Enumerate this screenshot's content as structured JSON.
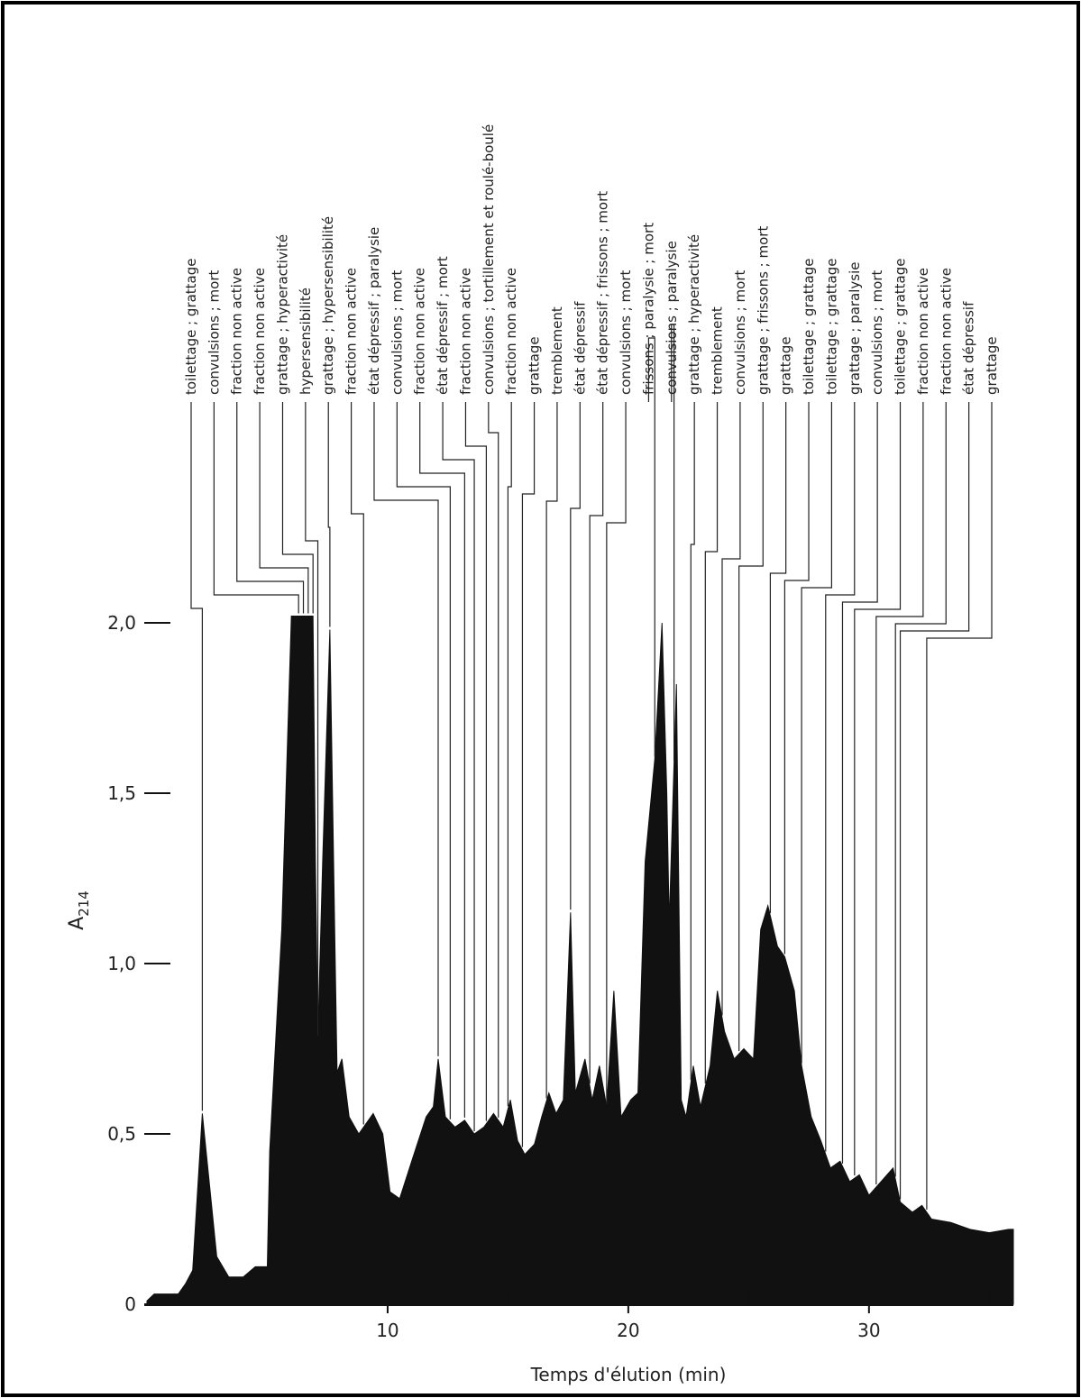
{
  "chart_data": {
    "type": "area",
    "color": "#111111",
    "x_label": "Temps d'élution (min)",
    "y_label": "A",
    "y_label_sub": "214",
    "xlim": [
      0,
      36
    ],
    "ylim": [
      0,
      2
    ],
    "xticks": [
      10,
      20,
      30
    ],
    "xminorticks": [
      5,
      15,
      25,
      35
    ],
    "yticks": [
      0,
      {
        "value": 0.5,
        "label": "0,5"
      },
      {
        "value": 1,
        "label": "1,0"
      },
      {
        "value": 1.5,
        "label": "1,5"
      },
      {
        "value": 2,
        "label": "2,0"
      }
    ],
    "x": [
      0,
      0.3,
      1.3,
      1.6,
      1.9,
      2.3,
      2.6,
      2.9,
      3.4,
      4.0,
      4.5,
      5.0,
      5.1,
      5.6,
      6.0,
      6.9,
      7.0,
      7.1,
      7.3,
      7.6,
      7.8,
      7.9,
      8.1,
      8.4,
      8.8,
      9.4,
      9.8,
      10.1,
      10.5,
      11.0,
      11.6,
      11.9,
      12.1,
      12.4,
      12.8,
      13.2,
      13.6,
      14.0,
      14.4,
      14.8,
      15.1,
      15.4,
      15.7,
      16.1,
      16.4,
      16.7,
      17.0,
      17.3,
      17.6,
      17.8,
      18.2,
      18.5,
      18.8,
      19.1,
      19.4,
      19.7,
      20.1,
      20.4,
      20.7,
      21.1,
      21.4,
      21.6,
      21.7,
      22.0,
      22.2,
      22.4,
      22.7,
      23.0,
      23.4,
      23.7,
      24.0,
      24.4,
      24.8,
      25.2,
      25.5,
      25.8,
      26.2,
      26.5,
      26.9,
      27.2,
      27.6,
      28.0,
      28.4,
      28.8,
      29.2,
      29.6,
      30.0,
      30.5,
      31.0,
      31.3,
      31.8,
      32.2,
      32.6,
      33.4,
      34.2,
      35.0,
      35.8,
      36
    ],
    "values": [
      0.01,
      0.03,
      0.03,
      0.06,
      0.1,
      0.56,
      0.35,
      0.14,
      0.08,
      0.08,
      0.11,
      0.11,
      0.45,
      1.1,
      2.02,
      2.02,
      1.3,
      0.78,
      1.3,
      1.98,
      1.1,
      0.68,
      0.72,
      0.55,
      0.5,
      0.56,
      0.5,
      0.33,
      0.31,
      0.42,
      0.55,
      0.58,
      0.72,
      0.55,
      0.52,
      0.54,
      0.5,
      0.52,
      0.56,
      0.52,
      0.6,
      0.48,
      0.44,
      0.47,
      0.55,
      0.62,
      0.56,
      0.6,
      1.15,
      0.62,
      0.72,
      0.6,
      0.7,
      0.58,
      0.92,
      0.55,
      0.6,
      0.62,
      1.3,
      1.6,
      2.0,
      1.5,
      1.12,
      1.82,
      0.6,
      0.55,
      0.7,
      0.58,
      0.7,
      0.92,
      0.8,
      0.72,
      0.75,
      0.72,
      1.1,
      1.17,
      1.05,
      1.02,
      0.92,
      0.7,
      0.55,
      0.48,
      0.4,
      0.42,
      0.36,
      0.38,
      0.32,
      0.36,
      0.4,
      0.3,
      0.27,
      0.29,
      0.25,
      0.24,
      0.22,
      0.21,
      0.22,
      0.22
    ],
    "annotations": [
      {
        "text": "toilettage ; grattage",
        "x": 2.3
      },
      {
        "text": "convulsions ; mort",
        "x": 6.3
      },
      {
        "text": "fraction non active",
        "x": 6.5
      },
      {
        "text": "fraction non active",
        "x": 6.7
      },
      {
        "text": "grattage ; hyperactivité",
        "x": 6.9
      },
      {
        "text": "hypersensibilité",
        "x": 7.1
      },
      {
        "text": "grattage ; hypersensibilité",
        "x": 7.6
      },
      {
        "text": "fraction non active",
        "x": 9.0
      },
      {
        "text": "état dépressif ; paralysie",
        "x": 12.1
      },
      {
        "text": "convulsions ; mort",
        "x": 12.6
      },
      {
        "text": "fraction non active",
        "x": 13.2
      },
      {
        "text": "état dépressif ; mort",
        "x": 13.6
      },
      {
        "text": "fraction non active",
        "x": 14.1
      },
      {
        "text": "convulsions ; tortillement et roulé-boulé",
        "x": 14.6
      },
      {
        "text": "fraction non active",
        "x": 15.0
      },
      {
        "text": "grattage",
        "x": 15.6
      },
      {
        "text": "tremblement",
        "x": 16.6
      },
      {
        "text": "état dépressif",
        "x": 17.6
      },
      {
        "text": "état dépressif ; frissons ; mort",
        "x": 18.4
      },
      {
        "text": "convulsions ; mort",
        "x": 19.1
      },
      {
        "text": "frissons ; paralysie ; mort",
        "x": 21.1
      },
      {
        "text": "convulsions ; paralysie",
        "x": 21.9
      },
      {
        "text": "grattage ; hyperactivité",
        "x": 22.6
      },
      {
        "text": "tremblement",
        "x": 23.2
      },
      {
        "text": "convulsions ; mort",
        "x": 23.9
      },
      {
        "text": "grattage ; frissons ; mort",
        "x": 24.6
      },
      {
        "text": "grattage",
        "x": 25.9
      },
      {
        "text": "toilettage ; grattage",
        "x": 26.5
      },
      {
        "text": "toilettage ; grattage",
        "x": 27.2
      },
      {
        "text": "grattage ; paralysie",
        "x": 28.2
      },
      {
        "text": "convulsions ; mort",
        "x": 28.9
      },
      {
        "text": "toilettage ; grattage",
        "x": 29.4
      },
      {
        "text": "fraction non active",
        "x": 30.3
      },
      {
        "text": "fraction non active",
        "x": 31.1
      },
      {
        "text": "état dépressif",
        "x": 31.3
      },
      {
        "text": "grattage",
        "x": 32.4
      }
    ]
  }
}
